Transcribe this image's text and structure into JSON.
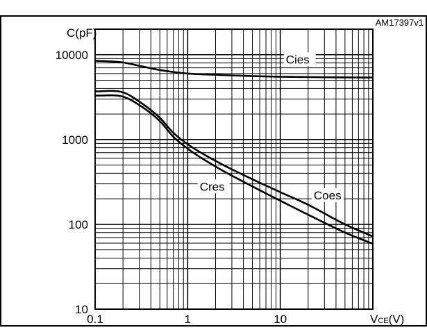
{
  "figure": {
    "code": "AM17397v1"
  },
  "chart_data": {
    "type": "line",
    "title": "",
    "xscale": "log",
    "yscale": "log",
    "xlim": [
      0.1,
      100
    ],
    "ylim": [
      10,
      20000
    ],
    "grid": true,
    "y_axis_label": "C(pF)",
    "x_axis_label_main": "V",
    "x_axis_label_sub": "CE",
    "x_axis_label_unit": "(V)",
    "x_ticks": [
      {
        "value": 0.1,
        "label": "0.1"
      },
      {
        "value": 1,
        "label": "1"
      },
      {
        "value": 10,
        "label": "10"
      }
    ],
    "y_ticks": [
      {
        "value": 10,
        "label": "10"
      },
      {
        "value": 100,
        "label": "100"
      },
      {
        "value": 1000,
        "label": "1000"
      },
      {
        "value": 10000,
        "label": "10000"
      }
    ],
    "series": [
      {
        "name": "Cies",
        "x": [
          0.1,
          0.2,
          0.3,
          0.5,
          1,
          2,
          5,
          10,
          20,
          50,
          100
        ],
        "y": [
          8500,
          8100,
          7400,
          6600,
          6000,
          5800,
          5600,
          5500,
          5450,
          5400,
          5380
        ]
      },
      {
        "name": "Coes",
        "x": [
          0.1,
          0.2,
          0.3,
          0.5,
          0.7,
          1,
          2,
          5,
          10,
          20,
          50,
          100
        ],
        "y": [
          3700,
          3600,
          2800,
          1800,
          1200,
          880,
          560,
          340,
          240,
          170,
          100,
          72
        ]
      },
      {
        "name": "Cres",
        "x": [
          0.1,
          0.2,
          0.3,
          0.5,
          0.7,
          1,
          2,
          5,
          10,
          20,
          50,
          100
        ],
        "y": [
          3300,
          3200,
          2550,
          1650,
          1080,
          780,
          480,
          280,
          190,
          130,
          80,
          59
        ]
      }
    ]
  }
}
